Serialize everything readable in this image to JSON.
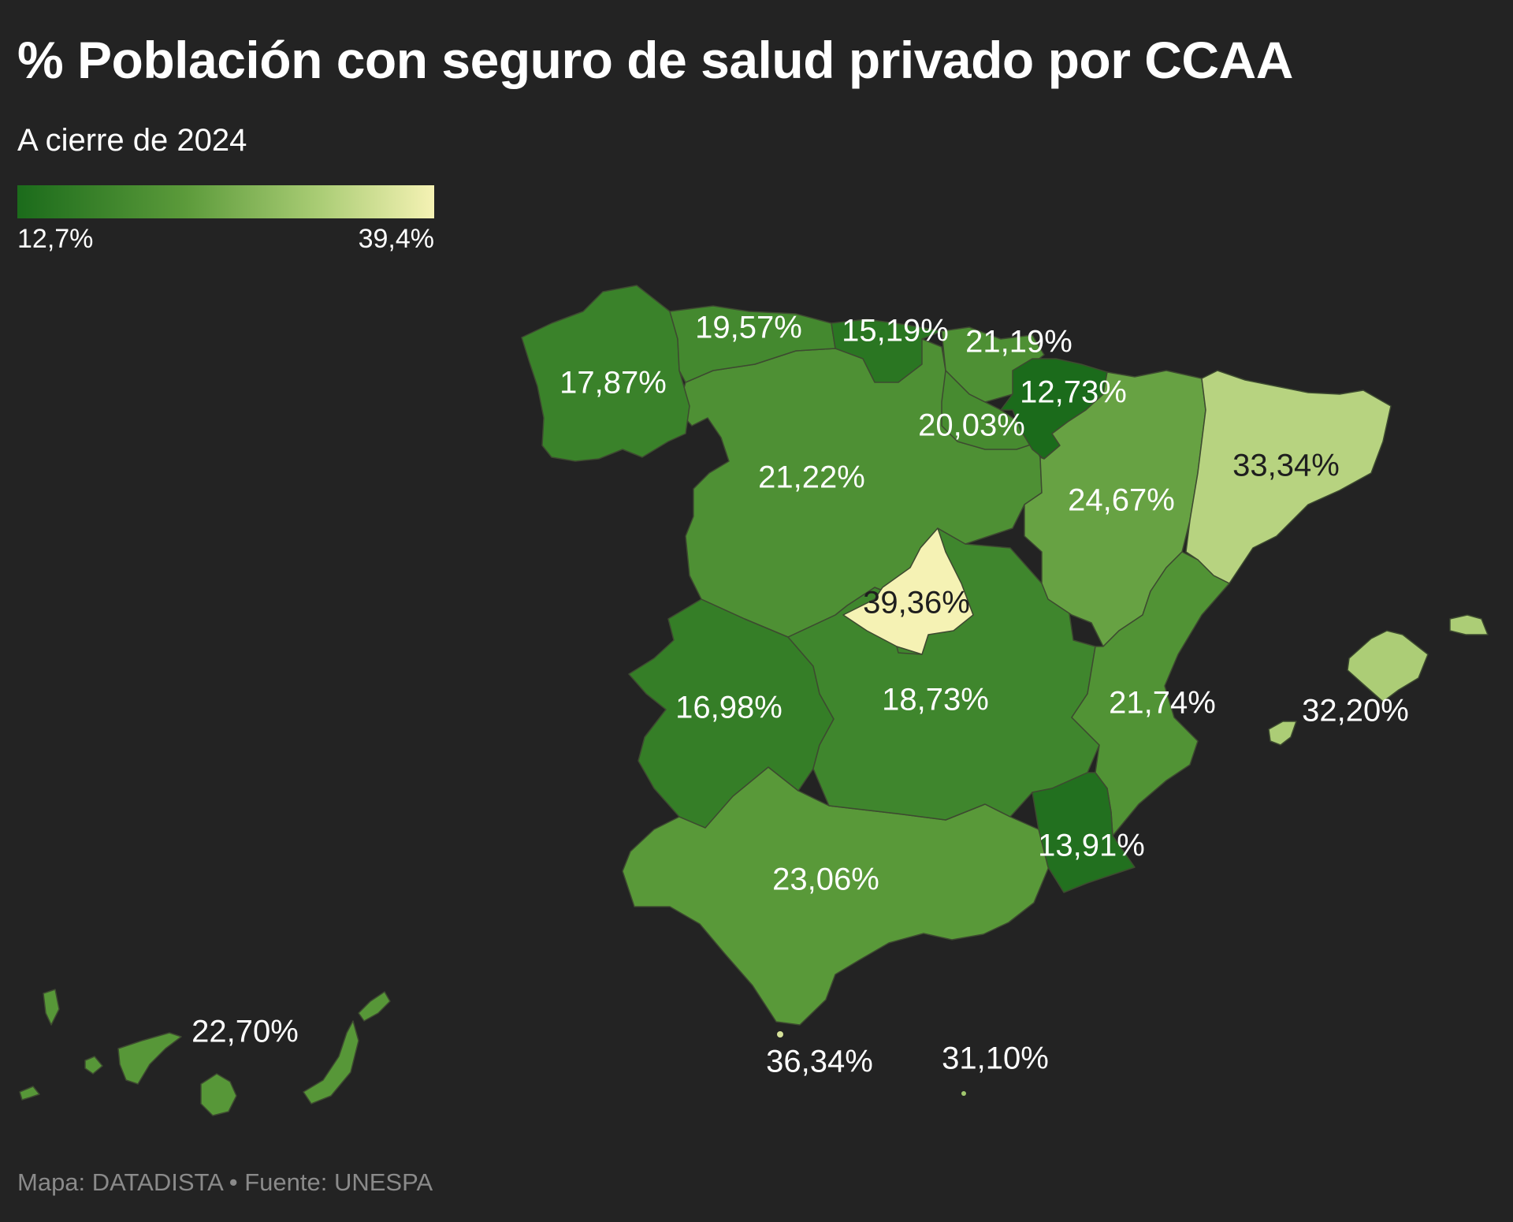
{
  "title": "% Población con seguro de salud privado por CCAA",
  "subtitle": "A cierre de 2024",
  "legend": {
    "min_label": "12,7%",
    "max_label": "39,4%",
    "min_value": 12.7,
    "max_value": 39.4,
    "color_low": "#1b6b1b",
    "color_high": "#f5f2b4"
  },
  "footer": "Mapa: DATADISTA • Fuente: UNESPA",
  "regions": [
    {
      "name": "Galicia",
      "value": 17.87,
      "label": "17,87%"
    },
    {
      "name": "Asturias",
      "value": 19.57,
      "label": "19,57%"
    },
    {
      "name": "Cantabria",
      "value": 15.19,
      "label": "15,19%"
    },
    {
      "name": "País Vasco",
      "value": 21.19,
      "label": "21,19%"
    },
    {
      "name": "Navarra",
      "value": 12.73,
      "label": "12,73%"
    },
    {
      "name": "La Rioja",
      "value": 20.03,
      "label": "20,03%"
    },
    {
      "name": "Castilla y León",
      "value": 21.22,
      "label": "21,22%"
    },
    {
      "name": "Aragón",
      "value": 24.67,
      "label": "24,67%"
    },
    {
      "name": "Cataluña",
      "value": 33.34,
      "label": "33,34%"
    },
    {
      "name": "Madrid",
      "value": 39.36,
      "label": "39,36%"
    },
    {
      "name": "Extremadura",
      "value": 16.98,
      "label": "16,98%"
    },
    {
      "name": "Castilla-La Mancha",
      "value": 18.73,
      "label": "18,73%"
    },
    {
      "name": "Comunidad Valenciana",
      "value": 21.74,
      "label": "21,74%"
    },
    {
      "name": "Islas Baleares",
      "value": 32.2,
      "label": "32,20%"
    },
    {
      "name": "Región de Murcia",
      "value": 13.91,
      "label": "13,91%"
    },
    {
      "name": "Andalucía",
      "value": 23.06,
      "label": "23,06%"
    },
    {
      "name": "Ceuta",
      "value": 36.34,
      "label": "36,34%"
    },
    {
      "name": "Melilla",
      "value": 31.1,
      "label": "31,10%"
    },
    {
      "name": "Canarias",
      "value": 22.7,
      "label": "22,70%"
    }
  ]
}
